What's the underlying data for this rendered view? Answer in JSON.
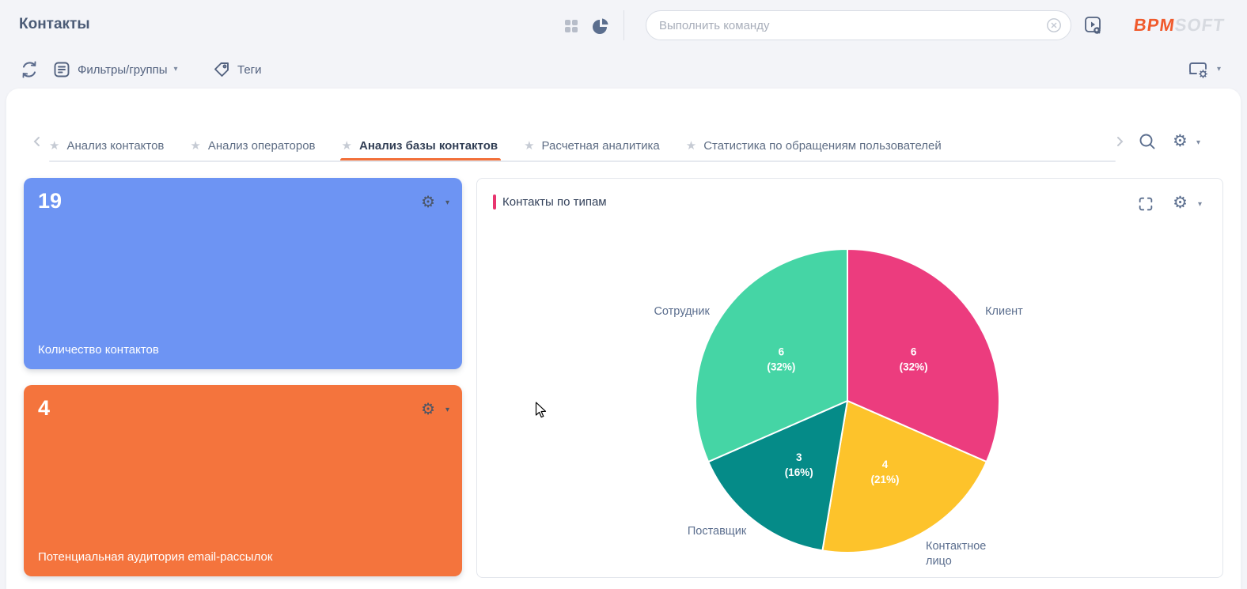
{
  "header": {
    "title": "Контакты",
    "command_placeholder": "Выполнить команду",
    "logo": {
      "bpm": "BPM",
      "soft": "SOFT"
    }
  },
  "toolbar": {
    "filters_label": "Фильтры/группы",
    "tags_label": "Теги"
  },
  "tabs": [
    {
      "id": "contacts-analysis",
      "label": "Анализ контактов",
      "active": false
    },
    {
      "id": "operators-analysis",
      "label": "Анализ операторов",
      "active": false
    },
    {
      "id": "contacts-db-analysis",
      "label": "Анализ базы контактов",
      "active": true
    },
    {
      "id": "calculated-analytics",
      "label": "Расчетная аналитика",
      "active": false
    },
    {
      "id": "user-requests-statistics",
      "label": "Статистика по обращениям пользователей",
      "active": false
    }
  ],
  "metrics": [
    {
      "value": "19",
      "label": "Количество контактов",
      "color": "#6d94f3"
    },
    {
      "value": "4",
      "label": "Потенциальная аудитория email-рассылок",
      "color": "#f4743d"
    }
  ],
  "chart_panel": {
    "title": "Контакты по типам",
    "accent_color": "#e8356f"
  },
  "chart_data": {
    "type": "pie",
    "title": "Контакты по типам",
    "total": 19,
    "categories": [
      "Клиент",
      "Контактное лицо",
      "Поставщик",
      "Сотрудник"
    ],
    "values": [
      6,
      4,
      3,
      6
    ],
    "slices": [
      {
        "label": "Клиент",
        "value": 6,
        "pct": "32%",
        "color": "#ec3c7e"
      },
      {
        "label": "Контактное\nлицо",
        "value": 4,
        "pct": "21%",
        "color": "#fdc32b"
      },
      {
        "label": "Поставщик",
        "value": 3,
        "pct": "16%",
        "color": "#058b88"
      },
      {
        "label": "Сотрудник",
        "value": 6,
        "pct": "32%",
        "color": "#45d5a5"
      }
    ],
    "start_angle_deg": 0,
    "direction": "clockwise",
    "legend": false,
    "data_labels": "value and percent inside slices, category names outside"
  },
  "icons": {
    "gear": "⚙",
    "star": "★",
    "caret": "▾"
  }
}
